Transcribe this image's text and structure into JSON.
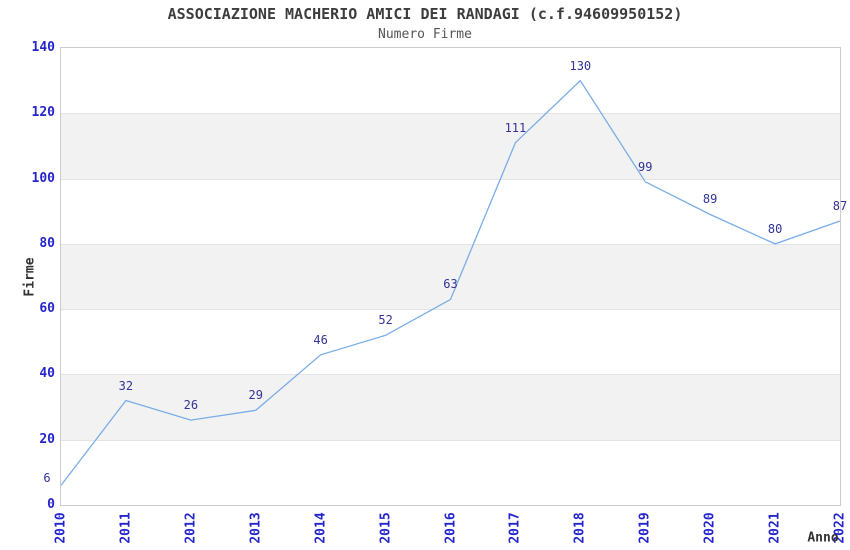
{
  "chart_data": {
    "type": "line",
    "title": "ASSOCIAZIONE MACHERIO AMICI DEI RANDAGI (c.f.94609950152)",
    "subtitle": "Numero Firme",
    "xlabel": "Anno",
    "ylabel": "Firme",
    "categories": [
      "2010",
      "2011",
      "2012",
      "2013",
      "2014",
      "2015",
      "2016",
      "2017",
      "2018",
      "2019",
      "2020",
      "2021",
      "2022"
    ],
    "values": [
      6,
      32,
      26,
      29,
      46,
      52,
      63,
      111,
      130,
      99,
      89,
      80,
      87
    ],
    "point_labels": [
      "6",
      "32",
      "26",
      "29",
      "46",
      "52",
      "63",
      "111",
      "130",
      "99",
      "89",
      "80",
      "87"
    ],
    "ylim": [
      0,
      140
    ],
    "yticks": [
      0,
      20,
      40,
      60,
      80,
      100,
      120,
      140
    ],
    "grid": "alternating-horizontal-bands",
    "gray_bands": [
      [
        20,
        40
      ],
      [
        60,
        80
      ],
      [
        100,
        120
      ]
    ],
    "legend": "none",
    "colors": {
      "line": "#79ade8",
      "tick_label": "#2525cc",
      "point_label": "#333399",
      "title": "#3d3d3d",
      "subtitle": "#555555",
      "axis_title": "#333333",
      "band": "#f2f2f2",
      "band_edge": "#e4e4e4",
      "plot_border": "#cccccc",
      "background": "#ffffff"
    }
  }
}
